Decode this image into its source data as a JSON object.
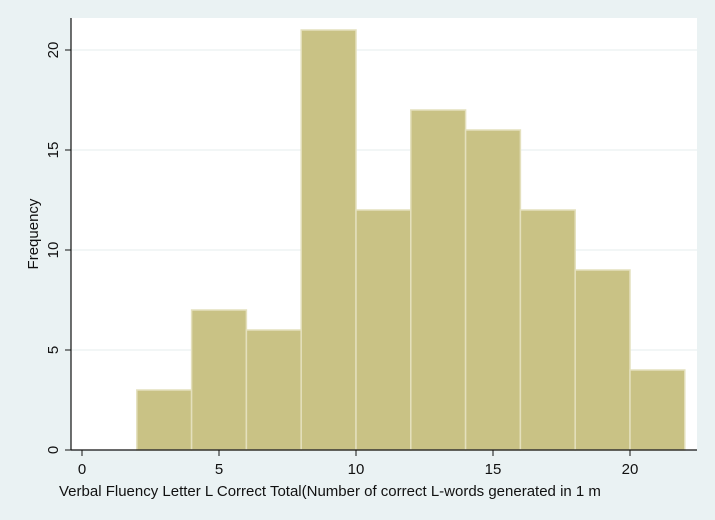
{
  "chart_data": {
    "type": "bar",
    "title": "",
    "xlabel": "Verbal Fluency Letter L Correct Total(Number of correct L-words generated in 1 m",
    "ylabel": "Frequency",
    "bin_width": 2,
    "bins": [
      {
        "start": 2,
        "end": 4,
        "value": 3
      },
      {
        "start": 4,
        "end": 6,
        "value": 7
      },
      {
        "start": 6,
        "end": 8,
        "value": 6
      },
      {
        "start": 8,
        "end": 10,
        "value": 21
      },
      {
        "start": 10,
        "end": 12,
        "value": 12
      },
      {
        "start": 12,
        "end": 14,
        "value": 17
      },
      {
        "start": 14,
        "end": 16,
        "value": 16
      },
      {
        "start": 16,
        "end": 18,
        "value": 12
      },
      {
        "start": 18,
        "end": 20,
        "value": 9
      },
      {
        "start": 20,
        "end": 22,
        "value": 4
      }
    ],
    "xlim": [
      0,
      22
    ],
    "ylim": [
      0,
      21
    ],
    "x_ticks": [
      "0",
      "5",
      "10",
      "15",
      "20"
    ],
    "y_ticks": [
      "0",
      "5",
      "10",
      "15",
      "20"
    ],
    "grid": true,
    "legend": "none",
    "colors": {
      "bar_fill": "#c9c285",
      "bar_edge": "#e4e0bd",
      "plot_bg": "#ffffff",
      "outer_bg": "#eaf2f3",
      "grid": "#e6eeee",
      "axis": "#111111"
    }
  }
}
